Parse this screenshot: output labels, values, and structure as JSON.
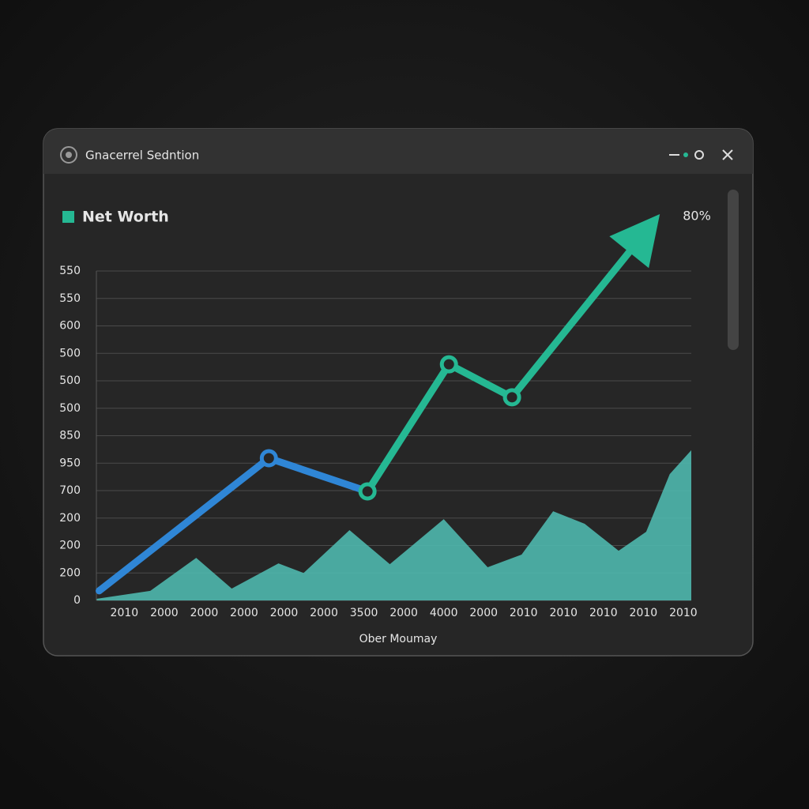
{
  "window": {
    "title": "Gnacerrel Sedntion"
  },
  "chart_data": {
    "type": "line",
    "title": "Net Worth",
    "annotation": "80%",
    "x_label": "Ober Moumay",
    "categories": [
      "2010",
      "2000",
      "2000",
      "2000",
      "2000",
      "2000",
      "3500",
      "2000",
      "4000",
      "2000",
      "2010",
      "2010",
      "2010",
      "2010",
      "2010"
    ],
    "xlim": [
      -0.7,
      14.2
    ],
    "ylim": [
      0,
      12
    ],
    "yticks": [
      {
        "value": 0,
        "label": "0"
      },
      {
        "value": 1,
        "label": "200"
      },
      {
        "value": 2,
        "label": "200"
      },
      {
        "value": 3,
        "label": "200"
      },
      {
        "value": 4,
        "label": "700"
      },
      {
        "value": 5,
        "label": "950"
      },
      {
        "value": 6,
        "label": "850"
      },
      {
        "value": 7,
        "label": "500"
      },
      {
        "value": 8,
        "label": "500"
      },
      {
        "value": 9,
        "label": "500"
      },
      {
        "value": 10,
        "label": "600"
      },
      {
        "value": 11,
        "label": "550"
      },
      {
        "value": 12,
        "label": "550"
      }
    ],
    "grid": true,
    "area": {
      "color": "#4fb8ae",
      "x": [
        -0.69,
        0.65,
        1.8,
        2.69,
        3.86,
        4.49,
        5.64,
        6.65,
        8.0,
        9.1,
        9.95,
        10.74,
        11.53,
        12.38,
        13.07,
        13.66,
        14.2
      ],
      "values": [
        0.06,
        0.35,
        1.55,
        0.43,
        1.35,
        1.0,
        2.56,
        1.32,
        2.96,
        1.21,
        1.67,
        3.25,
        2.79,
        1.81,
        2.5,
        4.6,
        5.47
      ]
    },
    "series": [
      {
        "color": "#2f86d6",
        "x": [
          -0.63,
          3.62,
          6.09
        ],
        "values": [
          0.35,
          5.18,
          3.97
        ]
      },
      {
        "color": "#25b893",
        "x": [
          6.09,
          8.13,
          9.71,
          12.95
        ],
        "values": [
          3.97,
          8.6,
          7.4,
          13.24
        ],
        "arrow": true
      }
    ]
  }
}
